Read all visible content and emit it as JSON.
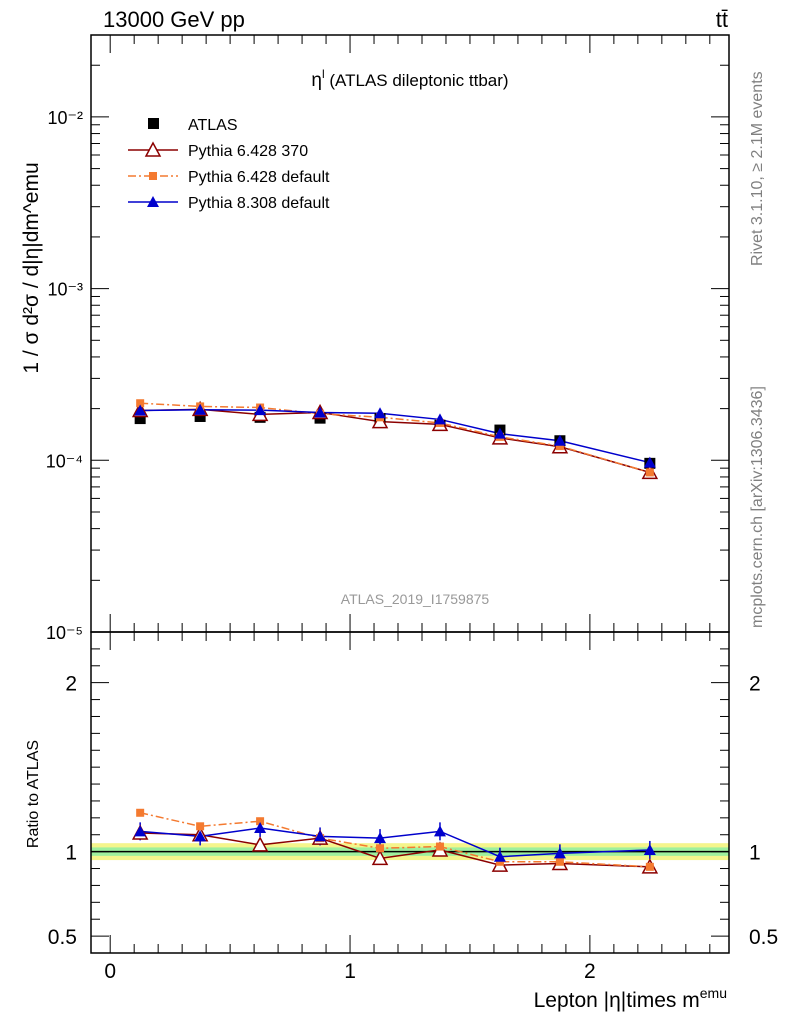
{
  "header": {
    "energy": "13000 GeV pp",
    "process": "tt̄"
  },
  "side_labels": {
    "rivet": "Rivet 3.1.10, ≥ 2.1M events",
    "mcplots": "mcplots.cern.ch [arXiv:1306.3436]"
  },
  "chart_data": [
    {
      "type": "line",
      "title": "η",
      "title_sup": "l",
      "title_rest": " (ATLAS dileptonic ttbar)",
      "ylabel": "1 / σ d²σ / d|η|dm^emu",
      "yscale": "log",
      "ylim": [
        1e-05,
        0.03
      ],
      "ytick_labels": [
        "10⁻⁵",
        "10⁻⁴",
        "10⁻³",
        "10⁻²"
      ],
      "watermark": "ATLAS_2019_I1759875",
      "x": [
        0.125,
        0.375,
        0.625,
        0.875,
        1.125,
        1.375,
        1.625,
        1.875,
        2.25
      ],
      "series": [
        {
          "name": "ATLAS",
          "color": "#000000",
          "marker": "square",
          "values": [
            0.000175,
            0.00018,
            0.000178,
            0.000176,
            0.000175,
            0.00016,
            0.00015,
            0.00013,
            9.6e-05
          ]
        },
        {
          "name": "Pythia 6.428 370",
          "color": "#8b0000",
          "marker": "triangle-open",
          "values": [
            0.000195,
            0.000198,
            0.000185,
            0.00019,
            0.000168,
            0.000162,
            0.000135,
            0.00012,
            8.5e-05
          ]
        },
        {
          "name": "Pythia 6.428 default",
          "color": "#f47a30",
          "marker": "square-small",
          "dash": true,
          "values": [
            0.000215,
            0.000206,
            0.000203,
            0.000187,
            0.000178,
            0.000165,
            0.000137,
            0.000121,
            8.5e-05
          ]
        },
        {
          "name": "Pythia 8.308 default",
          "color": "#0000cc",
          "marker": "triangle",
          "values": [
            0.000195,
            0.000197,
            0.000196,
            0.00019,
            0.000188,
            0.000173,
            0.000143,
            0.00013,
            9.7e-05
          ]
        }
      ]
    },
    {
      "type": "line",
      "ylabel": "Ratio to ATLAS",
      "xlabel": "Lepton |η|times m^emu",
      "ylim": [
        0.4,
        2.3
      ],
      "xlim": [
        -0.08,
        2.58
      ],
      "yticks": [
        0.5,
        1,
        2
      ],
      "ytick_labels": [
        "0.5",
        "1",
        "2"
      ],
      "xticks": [
        0,
        1,
        2
      ],
      "xtick_labels": [
        "0",
        "1",
        "2"
      ],
      "band_inner": [
        0.975,
        1.025
      ],
      "band_outer": [
        0.95,
        1.05
      ],
      "x": [
        0.125,
        0.375,
        0.625,
        0.875,
        1.125,
        1.375,
        1.625,
        1.875,
        2.25
      ],
      "series": [
        {
          "name": "Pythia 6.428 370",
          "color": "#8b0000",
          "marker": "triangle-open",
          "values": [
            1.11,
            1.1,
            1.04,
            1.08,
            0.96,
            1.01,
            0.92,
            0.93,
            0.91
          ]
        },
        {
          "name": "Pythia 6.428 default",
          "color": "#f47a30",
          "marker": "square-small",
          "dash": true,
          "values": [
            1.23,
            1.15,
            1.18,
            1.08,
            1.02,
            1.03,
            0.94,
            0.94,
            0.91
          ]
        },
        {
          "name": "Pythia 8.308 default",
          "color": "#0000cc",
          "marker": "triangle",
          "values": [
            1.12,
            1.09,
            1.14,
            1.09,
            1.08,
            1.12,
            0.97,
            0.99,
            1.01
          ]
        }
      ]
    }
  ]
}
